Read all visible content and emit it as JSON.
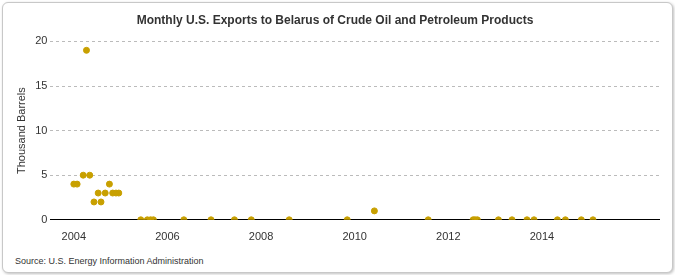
{
  "chart_data": {
    "type": "scatter",
    "title": "Monthly U.S. Exports to Belarus of Crude Oil and Petroleum Products",
    "y_label": "Thousand Barrels",
    "source": "Source: U.S. Energy Information Administration",
    "x": [
      2004.0,
      2004.07,
      2004.2,
      2004.27,
      2004.34,
      2004.43,
      2004.52,
      2004.58,
      2004.67,
      2004.76,
      2004.83,
      2004.9,
      2004.96,
      2005.43,
      2005.57,
      2005.64,
      2005.7,
      2006.35,
      2006.93,
      2007.43,
      2007.79,
      2008.6,
      2009.84,
      2010.42,
      2011.57,
      2012.53,
      2012.57,
      2012.62,
      2013.07,
      2013.36,
      2013.68,
      2013.83,
      2014.33,
      2014.5,
      2014.84,
      2015.09
    ],
    "values": [
      4,
      4,
      5,
      19,
      5,
      2,
      3,
      2,
      3,
      4,
      3,
      3,
      3,
      0,
      0,
      0,
      0,
      0,
      0,
      0,
      0,
      0,
      0,
      1,
      0,
      0,
      0,
      0,
      0,
      0,
      0,
      0,
      0,
      0,
      0,
      0
    ],
    "color": "#c8a000",
    "marker": "circle",
    "xlim": [
      2003.5,
      2016.5
    ],
    "xticks": [
      2004,
      2006,
      2008,
      2010,
      2012,
      2014
    ],
    "ylim": [
      0,
      20
    ],
    "yticks": [
      0,
      5,
      10,
      15,
      20
    ],
    "grid": true
  }
}
